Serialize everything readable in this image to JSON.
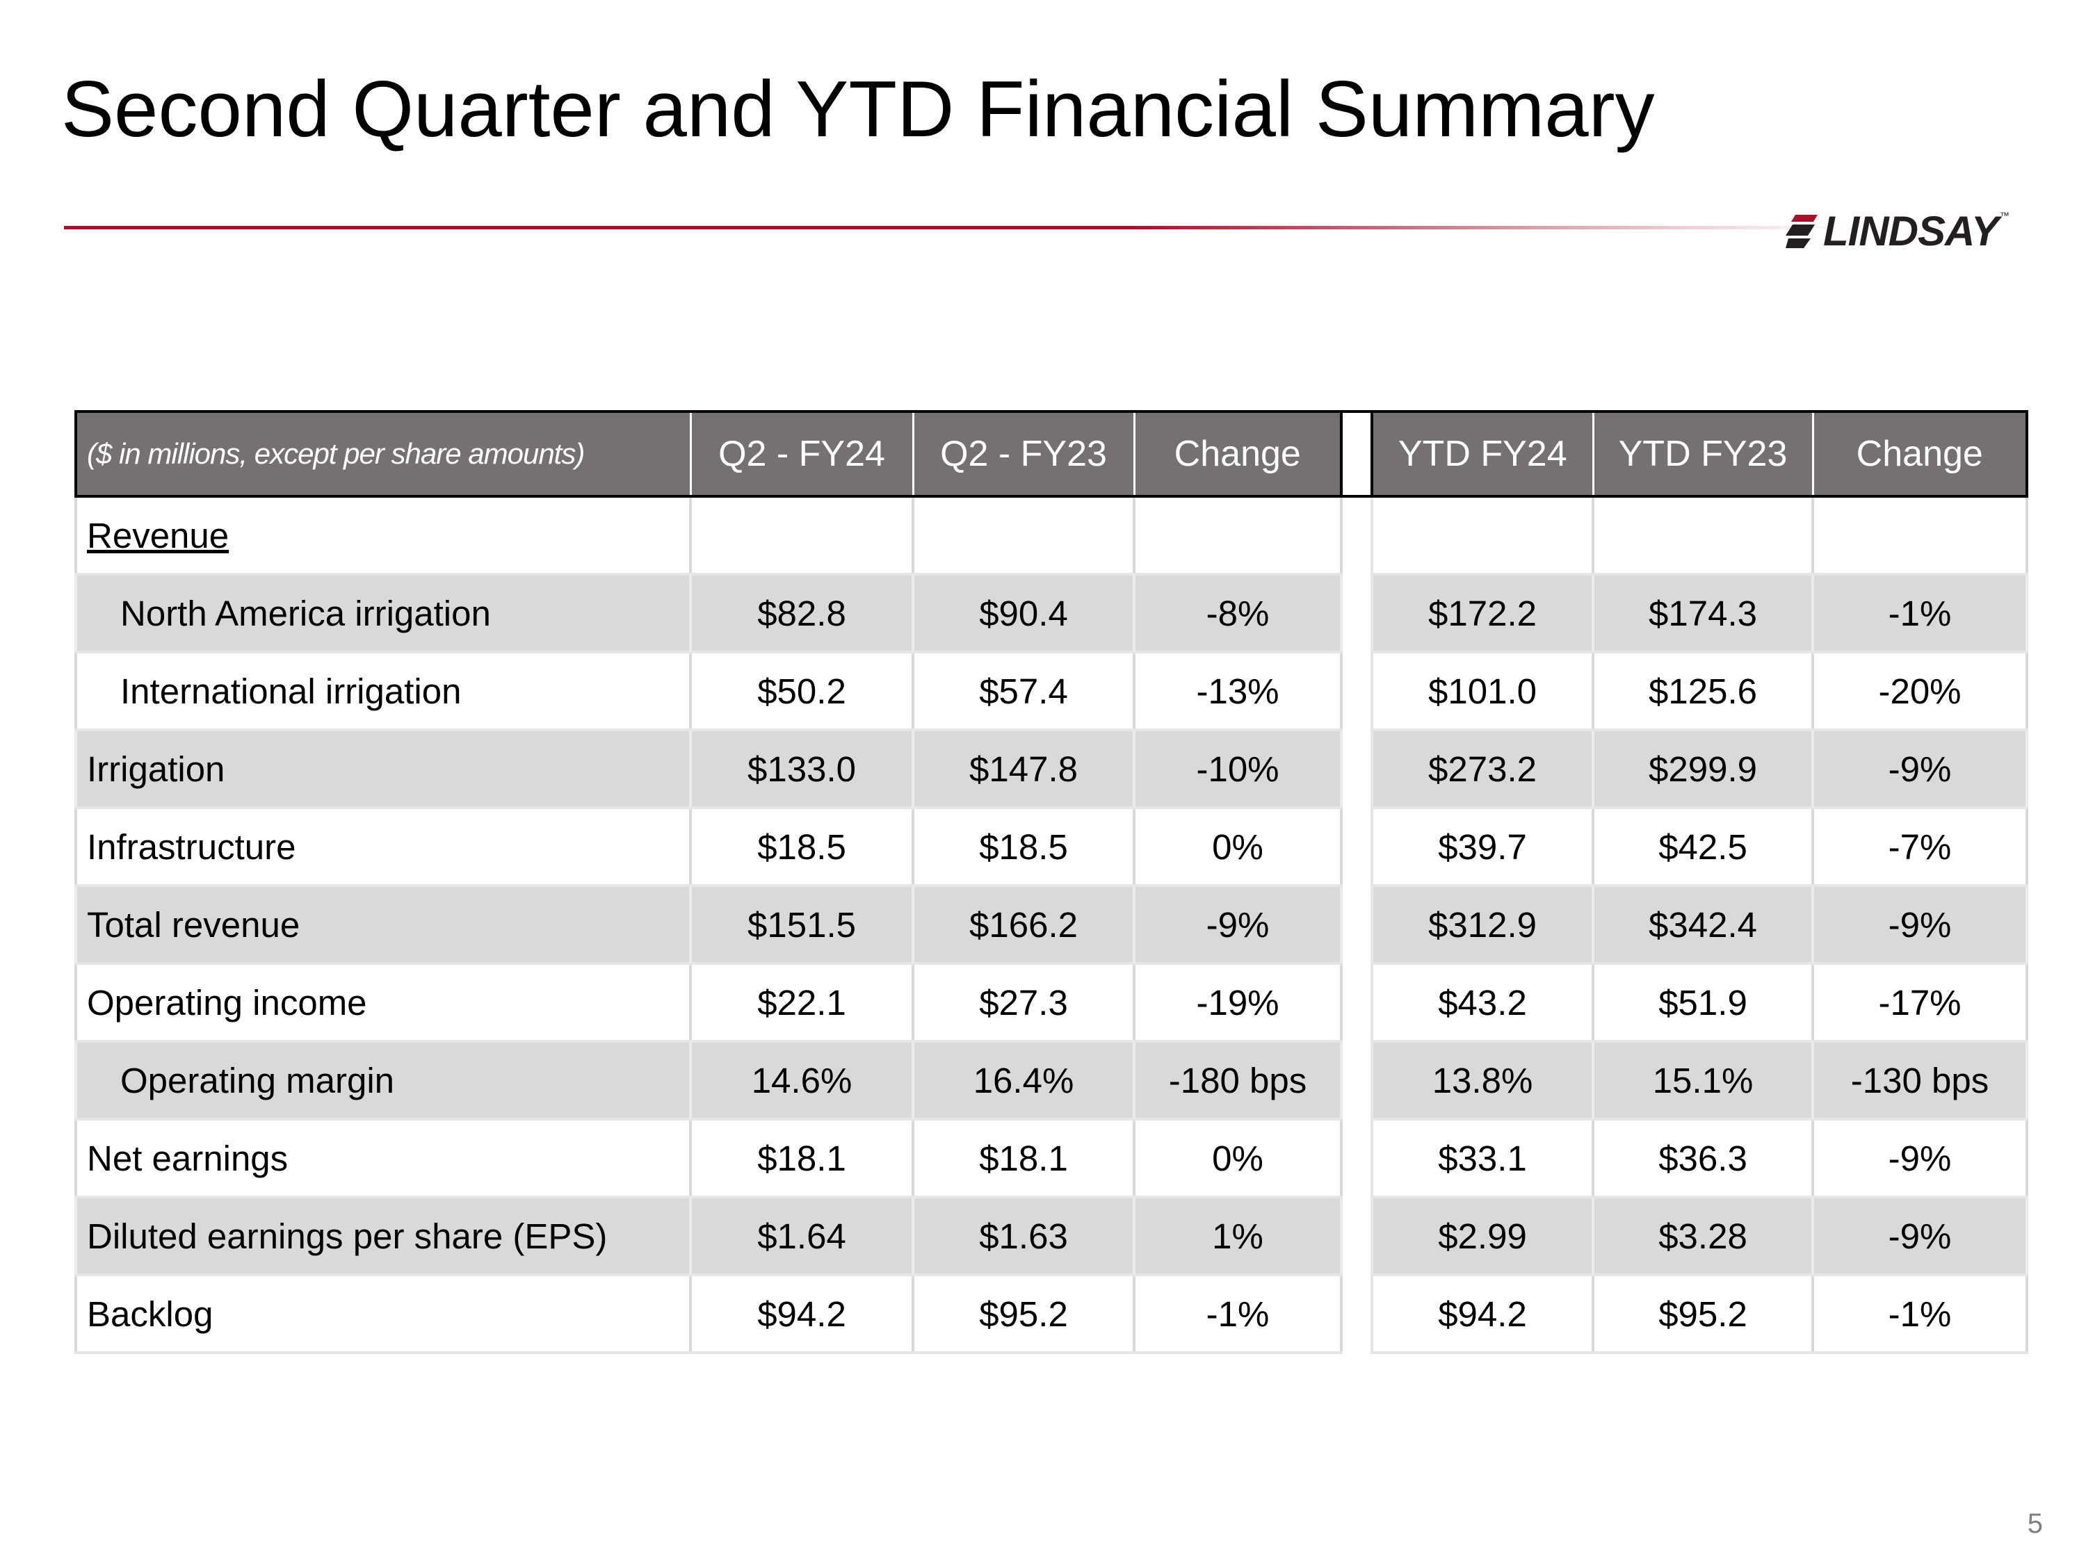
{
  "title": "Second Quarter and YTD Financial Summary",
  "logo": {
    "text": "LINDSAY",
    "tm": "™",
    "color": "#231f20"
  },
  "accent_color": "#a6122e",
  "header_color": "#767171",
  "table": {
    "header": {
      "caption": "($ in millions, except per share amounts)",
      "q2_fy24": "Q2 - FY24",
      "q2_fy23": "Q2 - FY23",
      "q_change": "Change",
      "ytd_fy24": "YTD FY24",
      "ytd_fy23": "YTD FY23",
      "ytd_change": "Change"
    },
    "section_label": "Revenue",
    "rows": [
      {
        "label": "North America irrigation",
        "q24": "$82.8",
        "q23": "$90.4",
        "qchg": "-8%",
        "y24": "$172.2",
        "y23": "$174.3",
        "ychg": "-1%"
      },
      {
        "label": "International irrigation",
        "q24": "$50.2",
        "q23": "$57.4",
        "qchg": "-13%",
        "y24": "$101.0",
        "y23": "$125.6",
        "ychg": "-20%"
      },
      {
        "label": "Irrigation",
        "q24": "$133.0",
        "q23": "$147.8",
        "qchg": "-10%",
        "y24": "$273.2",
        "y23": "$299.9",
        "ychg": "-9%"
      },
      {
        "label": "Infrastructure",
        "q24": "$18.5",
        "q23": "$18.5",
        "qchg": "0%",
        "y24": "$39.7",
        "y23": "$42.5",
        "ychg": "-7%"
      },
      {
        "label": "Total revenue",
        "q24": "$151.5",
        "q23": "$166.2",
        "qchg": "-9%",
        "y24": "$312.9",
        "y23": "$342.4",
        "ychg": "-9%"
      },
      {
        "label": "Operating income",
        "q24": "$22.1",
        "q23": "$27.3",
        "qchg": "-19%",
        "y24": "$43.2",
        "y23": "$51.9",
        "ychg": "-17%"
      },
      {
        "label": "Operating margin",
        "q24": "14.6%",
        "q23": "16.4%",
        "qchg": "-180 bps",
        "y24": "13.8%",
        "y23": "15.1%",
        "ychg": "-130 bps"
      },
      {
        "label": "Net earnings",
        "q24": "$18.1",
        "q23": "$18.1",
        "qchg": "0%",
        "y24": "$33.1",
        "y23": "$36.3",
        "ychg": "-9%"
      },
      {
        "label": "Diluted earnings per share (EPS)",
        "q24": "$1.64",
        "q23": "$1.63",
        "qchg": "1%",
        "y24": "$2.99",
        "y23": "$3.28",
        "ychg": "-9%"
      },
      {
        "label": "Backlog",
        "q24": "$94.2",
        "q23": "$95.2",
        "qchg": "-1%",
        "y24": "$94.2",
        "y23": "$95.2",
        "ychg": "-1%"
      }
    ]
  },
  "page_number": "5"
}
